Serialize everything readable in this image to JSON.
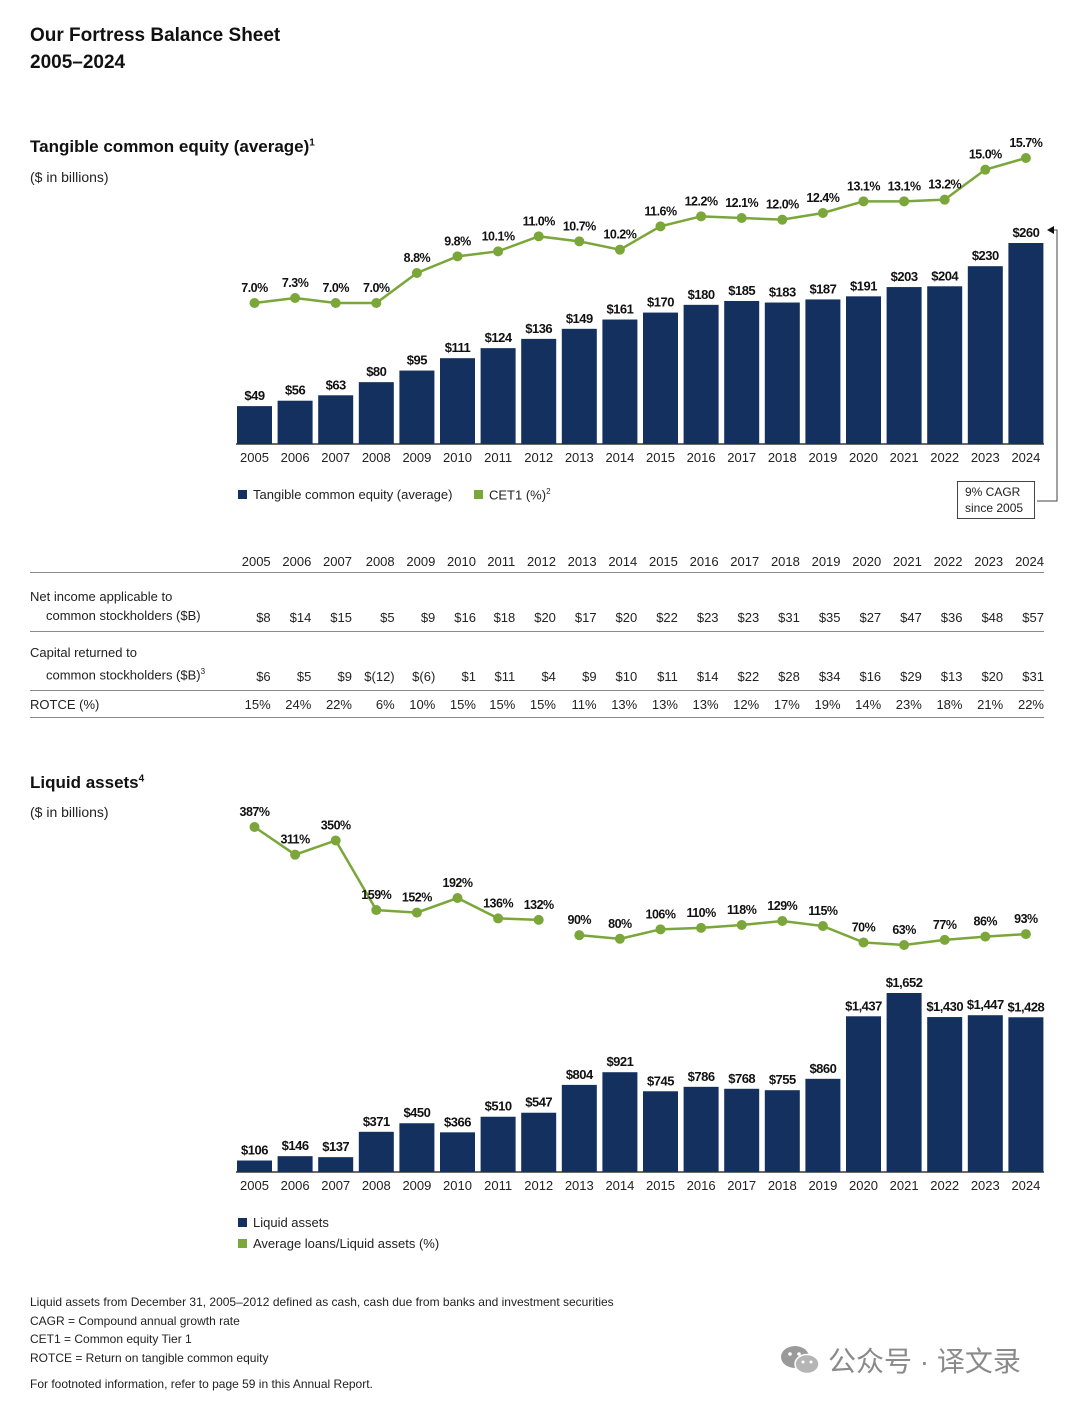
{
  "page": {
    "title_line1": "Our Fortress Balance Sheet",
    "title_line2": "2005–2024"
  },
  "colors": {
    "navy": "#13305e",
    "green": "#7aa63a"
  },
  "section1": {
    "title": "Tangible common equity (average)",
    "title_sup": "1",
    "unit": "($ in billions)",
    "legend_bar": "Tangible common equity (average)",
    "legend_line": "CET1 (%)",
    "legend_line_sup": "2",
    "cagr_line1": "9% CAGR",
    "cagr_line2": "since 2005"
  },
  "table": {
    "years": [
      "2005",
      "2006",
      "2007",
      "2008",
      "2009",
      "2010",
      "2011",
      "2012",
      "2013",
      "2014",
      "2015",
      "2016",
      "2017",
      "2018",
      "2019",
      "2020",
      "2021",
      "2022",
      "2023",
      "2024"
    ],
    "rows": [
      {
        "label1": "Net income applicable to",
        "label2": "common stockholders ($B)",
        "sup": "",
        "values": [
          "$8",
          "$14",
          "$15",
          "$5",
          "$9",
          "$16",
          "$18",
          "$20",
          "$17",
          "$20",
          "$22",
          "$23",
          "$23",
          "$31",
          "$35",
          "$27",
          "$47",
          "$36",
          "$48",
          "$57"
        ]
      },
      {
        "label1": "Capital returned to",
        "label2": "common stockholders ($B)",
        "sup": "3",
        "values": [
          "$6",
          "$5",
          "$9",
          "$(12)",
          "$(6)",
          "$1",
          "$11",
          "$4",
          "$9",
          "$10",
          "$11",
          "$14",
          "$22",
          "$28",
          "$34",
          "$16",
          "$29",
          "$13",
          "$20",
          "$31"
        ]
      },
      {
        "label1": "ROTCE (%)",
        "label2": "",
        "sup": "",
        "values": [
          "15%",
          "24%",
          "22%",
          "6%",
          "10%",
          "15%",
          "15%",
          "15%",
          "11%",
          "13%",
          "13%",
          "13%",
          "12%",
          "17%",
          "19%",
          "14%",
          "23%",
          "18%",
          "21%",
          "22%"
        ]
      }
    ]
  },
  "section2": {
    "title": "Liquid assets",
    "title_sup": "4",
    "unit": "($ in billions)",
    "legend_bar": "Liquid assets",
    "legend_line": "Average loans/Liquid assets (%)"
  },
  "footnotes": [
    "Liquid assets from December 31, 2005–2012 defined as cash, cash due from banks and investment securities",
    "CAGR = Compound annual growth rate",
    "CET1 = Common equity Tier 1",
    "ROTCE = Return on tangible common equity"
  ],
  "footnote_last": "For footnoted information, refer to page 59 in this Annual Report.",
  "watermark": {
    "text": "公众号 · 译文录",
    "icon": "wechat-icon"
  },
  "chart_data": [
    {
      "type": "bar",
      "title": "Tangible common equity (average)",
      "categories": [
        "2005",
        "2006",
        "2007",
        "2008",
        "2009",
        "2010",
        "2011",
        "2012",
        "2013",
        "2014",
        "2015",
        "2016",
        "2017",
        "2018",
        "2019",
        "2020",
        "2021",
        "2022",
        "2023",
        "2024"
      ],
      "series": [
        {
          "name": "Tangible common equity (average)",
          "type": "bar",
          "values": [
            49,
            56,
            63,
            80,
            95,
            111,
            124,
            136,
            149,
            161,
            170,
            180,
            185,
            183,
            187,
            191,
            203,
            204,
            230,
            260
          ],
          "labels": [
            "$49",
            "$56",
            "$63",
            "$80",
            "$95",
            "$111",
            "$124",
            "$136",
            "$149",
            "$161",
            "$170",
            "$180",
            "$185",
            "$183",
            "$187",
            "$191",
            "$203",
            "$204",
            "$230",
            "$260"
          ]
        },
        {
          "name": "CET1 (%)",
          "type": "line",
          "values": [
            7.0,
            7.3,
            7.0,
            7.0,
            8.8,
            9.8,
            10.1,
            11.0,
            10.7,
            10.2,
            11.6,
            12.2,
            12.1,
            12.0,
            12.4,
            13.1,
            13.1,
            13.2,
            15.0,
            15.7
          ],
          "labels": [
            "7.0%",
            "7.3%",
            "7.0%",
            "7.0%",
            "8.8%",
            "9.8%",
            "10.1%",
            "11.0%",
            "10.7%",
            "10.2%",
            "11.6%",
            "12.2%",
            "12.1%",
            "12.0%",
            "12.4%",
            "13.1%",
            "13.1%",
            "13.2%",
            "15.0%",
            "15.7%"
          ]
        }
      ]
    },
    {
      "type": "bar",
      "title": "Liquid assets",
      "categories": [
        "2005",
        "2006",
        "2007",
        "2008",
        "2009",
        "2010",
        "2011",
        "2012",
        "2013",
        "2014",
        "2015",
        "2016",
        "2017",
        "2018",
        "2019",
        "2020",
        "2021",
        "2022",
        "2023",
        "2024"
      ],
      "series": [
        {
          "name": "Liquid assets",
          "type": "bar",
          "values": [
            106,
            146,
            137,
            371,
            450,
            366,
            510,
            547,
            804,
            921,
            745,
            786,
            768,
            755,
            860,
            1437,
            1652,
            1430,
            1447,
            1428
          ],
          "labels": [
            "$106",
            "$146",
            "$137",
            "$371",
            "$450",
            "$366",
            "$510",
            "$547",
            "$804",
            "$921",
            "$745",
            "$786",
            "$768",
            "$755",
            "$860",
            "$1,437",
            "$1,652",
            "$1,430",
            "$1,447",
            "$1,428"
          ]
        },
        {
          "name": "Average loans/Liquid assets (%)",
          "type": "line",
          "values": [
            387,
            311,
            350,
            159,
            152,
            192,
            136,
            132,
            90,
            80,
            106,
            110,
            118,
            129,
            115,
            70,
            63,
            77,
            86,
            93
          ],
          "labels": [
            "387%",
            "311%",
            "350%",
            "159%",
            "152%",
            "192%",
            "136%",
            "132%",
            "90%",
            "80%",
            "106%",
            "110%",
            "118%",
            "129%",
            "115%",
            "70%",
            "63%",
            "77%",
            "86%",
            "93%"
          ]
        }
      ]
    }
  ]
}
